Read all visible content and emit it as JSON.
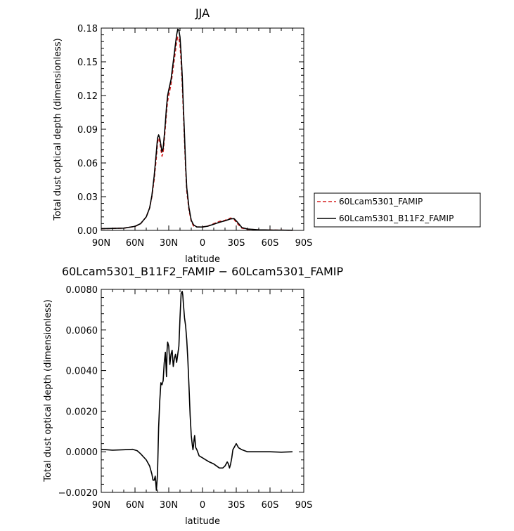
{
  "chart_data": [
    {
      "type": "line",
      "title": "JJA",
      "xlabel": "latitude",
      "ylabel": "Total dust optical depth (dimensionless)",
      "xlim": [
        90,
        -90
      ],
      "ylim": [
        0,
        0.18
      ],
      "x_ticks": [
        {
          "value": 90,
          "label": "90N"
        },
        {
          "value": 60,
          "label": "60N"
        },
        {
          "value": 30,
          "label": "30N"
        },
        {
          "value": 0,
          "label": "0"
        },
        {
          "value": -30,
          "label": "30S"
        },
        {
          "value": -60,
          "label": "60S"
        },
        {
          "value": -90,
          "label": "90S"
        }
      ],
      "y_ticks": [
        {
          "value": 0,
          "label": "0.00"
        },
        {
          "value": 0.03,
          "label": "0.03"
        },
        {
          "value": 0.06,
          "label": "0.06"
        },
        {
          "value": 0.09,
          "label": "0.09"
        },
        {
          "value": 0.12,
          "label": "0.12"
        },
        {
          "value": 0.15,
          "label": "0.15"
        },
        {
          "value": 0.18,
          "label": "0.18"
        }
      ],
      "legend_position": "right",
      "series": [
        {
          "name": "60Lcam5301_FAMIP",
          "color": "#d62020",
          "dash": "dashed",
          "x": [
            90,
            70,
            60,
            55,
            50,
            47,
            45,
            43,
            41,
            40,
            39,
            38,
            37,
            36,
            35,
            34,
            33,
            32,
            31,
            30,
            28,
            26,
            24,
            23,
            22,
            21,
            20,
            19,
            18,
            17,
            16,
            15,
            14,
            12,
            10,
            8,
            5,
            0,
            -5,
            -10,
            -15,
            -20,
            -25,
            -28,
            -30,
            -33,
            -35,
            -40,
            -50,
            -60,
            -70,
            -80
          ],
          "y": [
            0.0015,
            0.002,
            0.0035,
            0.006,
            0.012,
            0.02,
            0.03,
            0.045,
            0.065,
            0.078,
            0.082,
            0.079,
            0.072,
            0.066,
            0.069,
            0.08,
            0.092,
            0.105,
            0.115,
            0.12,
            0.13,
            0.145,
            0.16,
            0.168,
            0.172,
            0.171,
            0.165,
            0.15,
            0.13,
            0.105,
            0.08,
            0.055,
            0.035,
            0.018,
            0.008,
            0.004,
            0.003,
            0.003,
            0.004,
            0.006,
            0.008,
            0.009,
            0.011,
            0.01,
            0.007,
            0.004,
            0.002,
            0.001,
            0.0005,
            0.0003,
            0.0002,
            0.0001
          ]
        },
        {
          "name": "60Lcam5301_B11F2_FAMIP",
          "color": "#000000",
          "dash": "solid",
          "x": [
            90,
            70,
            60,
            55,
            50,
            47,
            45,
            43,
            41,
            40,
            39,
            38,
            37,
            36,
            35,
            34,
            33,
            32,
            31,
            30,
            28,
            26,
            24,
            23,
            22,
            21,
            20,
            19,
            18,
            17,
            16,
            15,
            14,
            12,
            10,
            8,
            5,
            0,
            -5,
            -10,
            -15,
            -20,
            -25,
            -28,
            -30,
            -33,
            -35,
            -40,
            -50,
            -60,
            -70,
            -80
          ],
          "y": [
            0.0015,
            0.002,
            0.0036,
            0.006,
            0.012,
            0.02,
            0.031,
            0.048,
            0.07,
            0.082,
            0.085,
            0.082,
            0.076,
            0.07,
            0.073,
            0.084,
            0.096,
            0.11,
            0.12,
            0.125,
            0.134,
            0.15,
            0.166,
            0.174,
            0.179,
            0.178,
            0.172,
            0.157,
            0.137,
            0.11,
            0.085,
            0.058,
            0.038,
            0.02,
            0.009,
            0.005,
            0.003,
            0.003,
            0.0038,
            0.0055,
            0.0072,
            0.0085,
            0.0102,
            0.0105,
            0.0085,
            0.005,
            0.0025,
            0.0012,
            0.0005,
            0.0003,
            0.0002,
            0.0001
          ]
        }
      ]
    },
    {
      "type": "line",
      "title": "60Lcam5301_B11F2_FAMIP − 60Lcam5301_FAMIP",
      "xlabel": "latitude",
      "ylabel": "Total dust optical depth (dimensionless)",
      "xlim": [
        90,
        -90
      ],
      "ylim": [
        -0.002,
        0.008
      ],
      "x_ticks": [
        {
          "value": 90,
          "label": "90N"
        },
        {
          "value": 60,
          "label": "60N"
        },
        {
          "value": 30,
          "label": "30N"
        },
        {
          "value": 0,
          "label": "0"
        },
        {
          "value": -30,
          "label": "30S"
        },
        {
          "value": -60,
          "label": "60S"
        },
        {
          "value": -90,
          "label": "90S"
        }
      ],
      "y_ticks": [
        {
          "value": -0.002,
          "label": "−0.0020"
        },
        {
          "value": 0,
          "label": "0.0000"
        },
        {
          "value": 0.002,
          "label": "0.0020"
        },
        {
          "value": 0.004,
          "label": "0.0040"
        },
        {
          "value": 0.006,
          "label": "0.0060"
        },
        {
          "value": 0.008,
          "label": "0.0080"
        }
      ],
      "series": [
        {
          "color": "#000000",
          "dash": "solid",
          "x": [
            90,
            80,
            70,
            62,
            58,
            55,
            50,
            47,
            45,
            44,
            43,
            42,
            41,
            40,
            39,
            38,
            37,
            36,
            35,
            34,
            33,
            32,
            31.5,
            31,
            30,
            29,
            28,
            27,
            26,
            25,
            24,
            23,
            22,
            21,
            20,
            19,
            18,
            17.5,
            17,
            16,
            15,
            14,
            13,
            12,
            11,
            10,
            9,
            8.5,
            8,
            7.5,
            7,
            6,
            5,
            3,
            0,
            -3,
            -6,
            -10,
            -15,
            -18,
            -20,
            -22,
            -23,
            -24,
            -25,
            -26,
            -27,
            -29,
            -30,
            -32,
            -35,
            -40,
            -50,
            -60,
            -70,
            -80
          ],
          "y": [
            0.00012,
            8e-05,
            0.0001,
            0.00012,
            5e-05,
            -0.0001,
            -0.0004,
            -0.0007,
            -0.0011,
            -0.0014,
            -0.0014,
            -0.0012,
            -0.0019,
            -0.0011,
            0.0012,
            0.0025,
            0.0034,
            0.0033,
            0.0035,
            0.0044,
            0.0049,
            0.0037,
            0.005,
            0.0054,
            0.0052,
            0.0043,
            0.0048,
            0.005,
            0.0042,
            0.0046,
            0.0048,
            0.0044,
            0.0048,
            0.0052,
            0.0066,
            0.0078,
            0.0079,
            0.0077,
            0.0073,
            0.0066,
            0.0062,
            0.0055,
            0.0045,
            0.0032,
            0.0018,
            0.0008,
            0.0003,
            0.0001,
            0.0003,
            0.0006,
            0.0008,
            0.0002,
            0.0001,
            -0.0002,
            -0.0003,
            -0.0004,
            -0.0005,
            -0.0006,
            -0.0008,
            -0.0008,
            -0.0007,
            -0.0005,
            -0.0006,
            -0.0008,
            -0.0006,
            -0.0003,
            0.0001,
            0.0003,
            0.0004,
            0.0002,
            0.0001,
            0,
            0,
            0,
            -2e-05,
            0
          ]
        }
      ]
    }
  ]
}
